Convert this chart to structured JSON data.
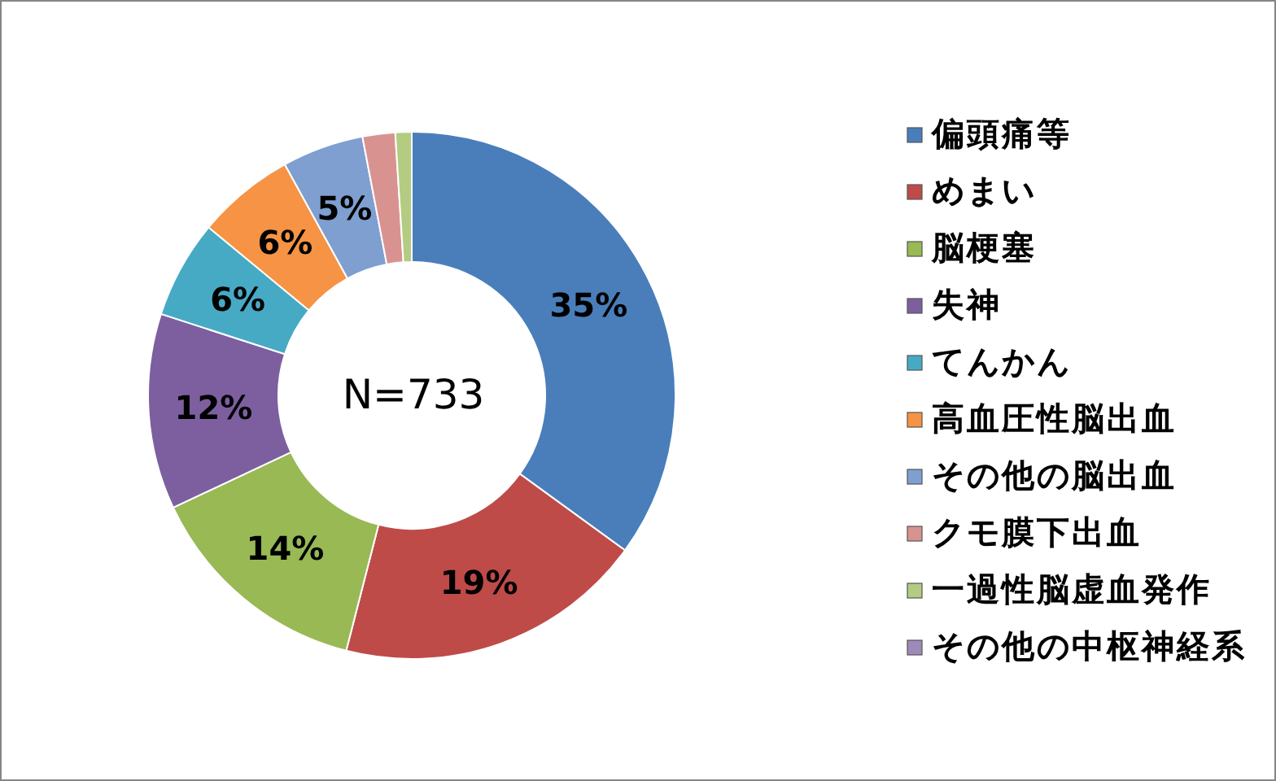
{
  "chart_data": {
    "type": "donut",
    "categories": [
      "偏頭痛等",
      "めまい",
      "脳梗塞",
      "失神",
      "てんかん",
      "高血圧性脳出血",
      "その他の脳出血",
      "クモ膜下出血",
      "一過性脳虚血発作",
      "その他の中枢神経系"
    ],
    "values": [
      35,
      19,
      14,
      12,
      6,
      6,
      5,
      2,
      1,
      0
    ],
    "colors": [
      "#4a7ebb",
      "#be4b48",
      "#98b954",
      "#7d5fa0",
      "#46aac5",
      "#f69344",
      "#7f9fd0",
      "#d89391",
      "#b3cc82",
      "#9e8ab9"
    ],
    "value_labels": [
      "35%",
      "19%",
      "14%",
      "12%",
      "6%",
      "6%",
      "5%",
      null,
      null,
      null
    ],
    "legend": "right",
    "annotations": [
      "N=733"
    ]
  }
}
